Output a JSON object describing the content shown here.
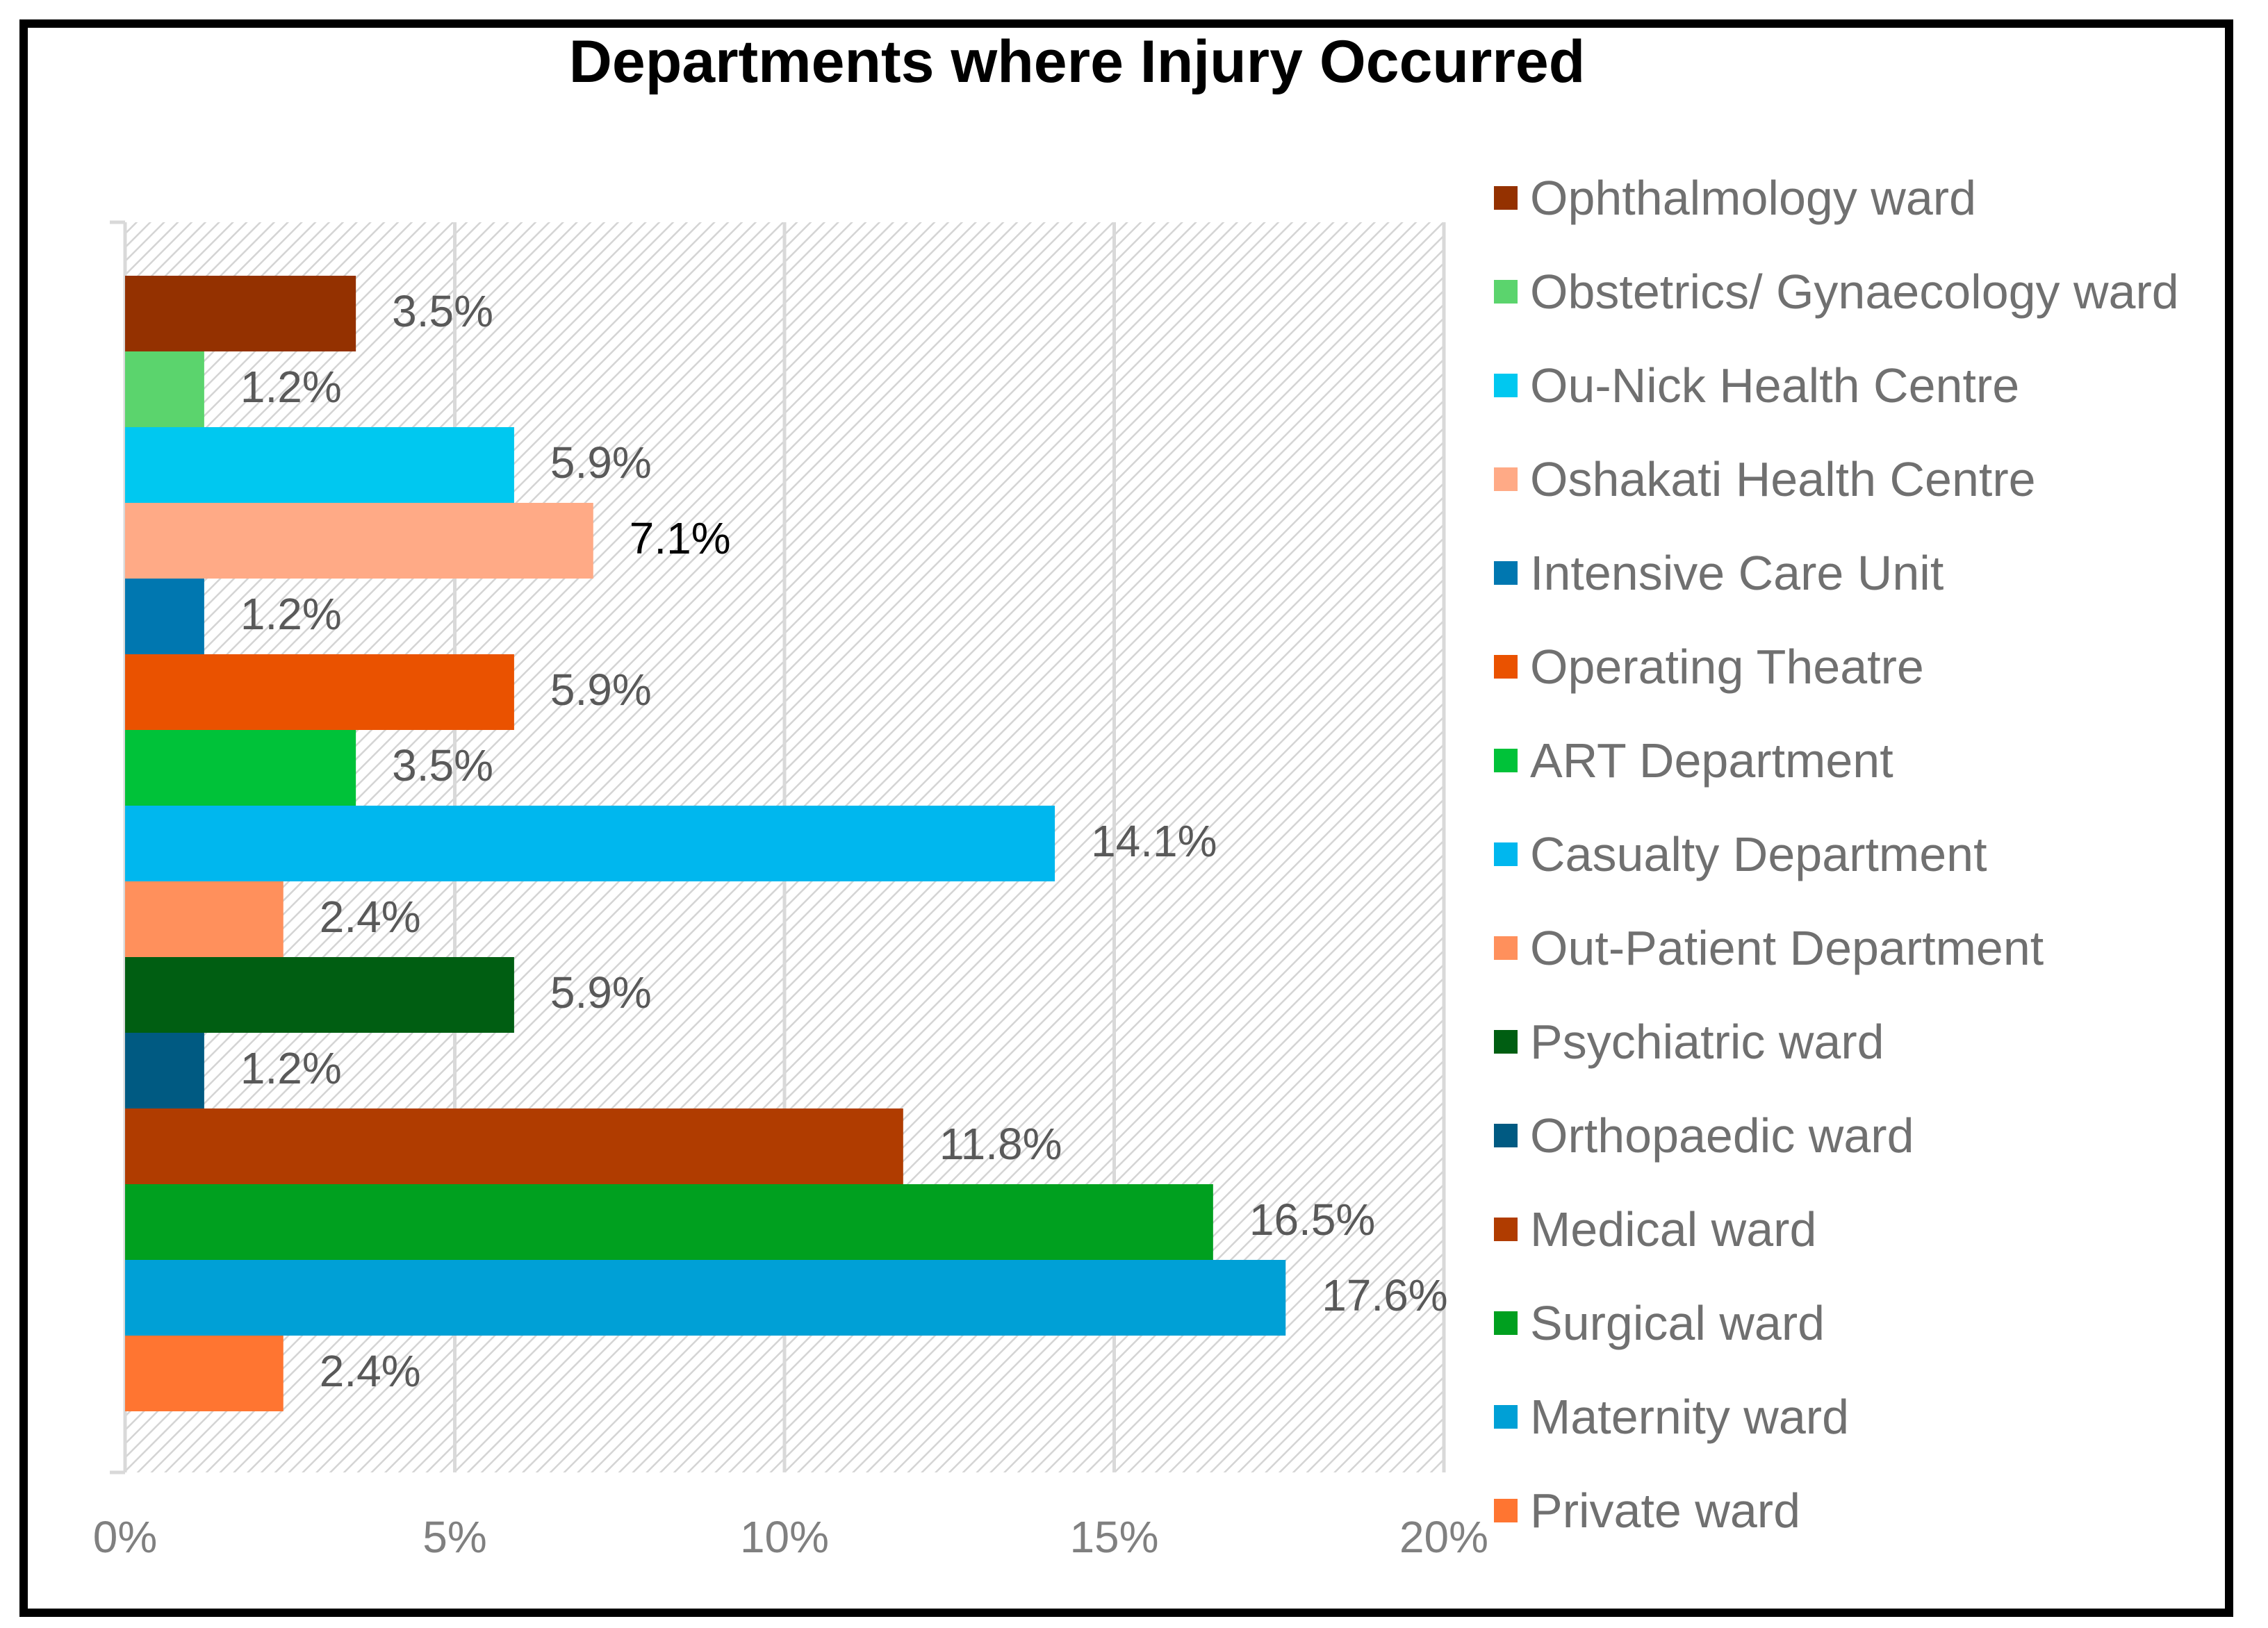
{
  "chart_data": {
    "type": "bar",
    "orientation": "horizontal",
    "title": "Departments where Injury Occurred",
    "xlabel": "",
    "ylabel": "",
    "xlim": [
      0,
      20
    ],
    "x_ticks": [
      "0%",
      "5%",
      "10%",
      "15%",
      "20%"
    ],
    "grid": true,
    "legend_position": "right",
    "categories": [
      "Ophthalmology ward",
      "Obstetrics/ Gynaecology ward",
      "Ou-Nick Health Centre",
      "Oshakati Health Centre",
      "Intensive Care Unit",
      "Operating Theatre",
      "ART Department",
      "Casualty Department",
      "Out-Patient Department",
      "Psychiatric ward",
      "Orthopaedic ward",
      "Medical ward",
      "Surgical ward",
      "Maternity ward",
      "Private ward"
    ],
    "values": [
      3.5,
      1.2,
      5.9,
      7.1,
      1.2,
      5.9,
      3.5,
      14.1,
      2.4,
      5.9,
      1.2,
      11.8,
      16.5,
      17.6,
      2.4
    ],
    "value_labels": [
      "3.5%",
      "1.2%",
      "5.9%",
      "7.1%",
      "1.2%",
      "5.9%",
      "3.5%",
      "14.1%",
      "2.4%",
      "5.9%",
      "1.2%",
      "11.8%",
      "16.5%",
      "17.6%",
      "2.4%"
    ],
    "colors": [
      "#943100",
      "#5BD46D",
      "#00C8F0",
      "#FFAA86",
      "#0077B0",
      "#EA5200",
      "#00C239",
      "#00B7EE",
      "#FF905C",
      "#005E12",
      "#005A82",
      "#B03C00",
      "#00A01F",
      "#00A0D6",
      "#FF7531"
    ],
    "label_colors": [
      "#595959",
      "#595959",
      "#595959",
      "#000000",
      "#595959",
      "#595959",
      "#595959",
      "#595959",
      "#595959",
      "#595959",
      "#595959",
      "#595959",
      "#595959",
      "#595959",
      "#595959"
    ]
  }
}
